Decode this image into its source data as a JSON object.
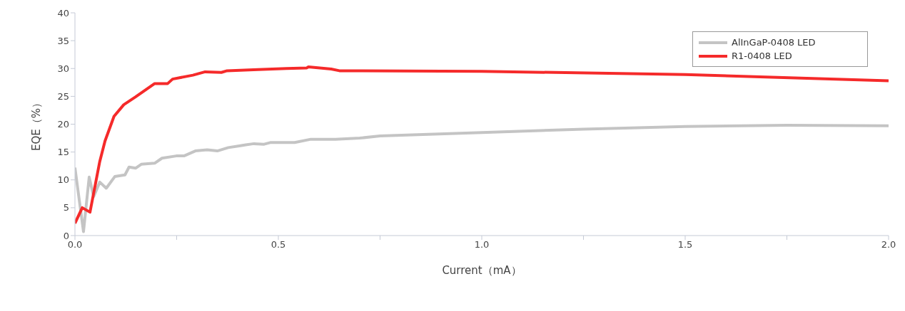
{
  "chart_data": {
    "type": "line",
    "xlabel": "Current（mA）",
    "ylabel": "EQE（%）",
    "xlim": [
      0,
      2.0
    ],
    "xticks": [
      {
        "value": 0,
        "label": "0.0"
      },
      {
        "value": 0.25,
        "label": null
      },
      {
        "value": 0.5,
        "label": "0.5"
      },
      {
        "value": 0.75,
        "label": null
      },
      {
        "value": 1.0,
        "label": "1.0"
      },
      {
        "value": 1.25,
        "label": null
      },
      {
        "value": 1.5,
        "label": "1.5"
      },
      {
        "value": 1.75,
        "label": null
      },
      {
        "value": 2.0,
        "label": "2.0"
      }
    ],
    "ylim": [
      0,
      40
    ],
    "yticks": [
      0,
      5,
      10,
      15,
      20,
      25,
      30,
      35,
      40
    ],
    "grid": false,
    "legend": "top right",
    "marker": "none",
    "line_style": "solid",
    "series": [
      {
        "name": "AlInGaP-0408 LED",
        "color": "#c4c4c4",
        "x": [
          0,
          0.021,
          0.035,
          0.046,
          0.061,
          0.077,
          0.098,
          0.123,
          0.133,
          0.149,
          0.163,
          0.196,
          0.214,
          0.249,
          0.268,
          0.296,
          0.325,
          0.35,
          0.377,
          0.404,
          0.42,
          0.44,
          0.465,
          0.48,
          0.54,
          0.58,
          0.64,
          0.7,
          0.75,
          1.0,
          1.25,
          1.5,
          1.75,
          2.0
        ],
        "values": [
          12.2,
          0.7,
          10.5,
          7,
          9.6,
          8.5,
          10.6,
          10.9,
          12.3,
          12.1,
          12.8,
          13,
          13.9,
          14.3,
          14.3,
          15.2,
          15.4,
          15.2,
          15.8,
          16.1,
          16.3,
          16.5,
          16.4,
          16.7,
          16.7,
          17.3,
          17.3,
          17.5,
          17.9,
          18.5,
          19.1,
          19.6,
          19.8,
          19.7
        ]
      },
      {
        "name": "R1-0408 LED",
        "color": "#f52a2a",
        "x": [
          0,
          0.018,
          0.037,
          0.061,
          0.074,
          0.096,
          0.12,
          0.149,
          0.196,
          0.228,
          0.24,
          0.29,
          0.32,
          0.36,
          0.374,
          0.45,
          0.52,
          0.57,
          0.574,
          0.63,
          0.65,
          1.0,
          1.5,
          2.0
        ],
        "values": [
          2.2,
          5.0,
          4.2,
          13.3,
          17,
          21.4,
          23.5,
          24.9,
          27.3,
          27.3,
          28.1,
          28.8,
          29.4,
          29.3,
          29.6,
          29.8,
          30,
          30.1,
          30.3,
          29.9,
          29.6,
          29.5,
          28.9,
          27.8
        ]
      }
    ]
  }
}
